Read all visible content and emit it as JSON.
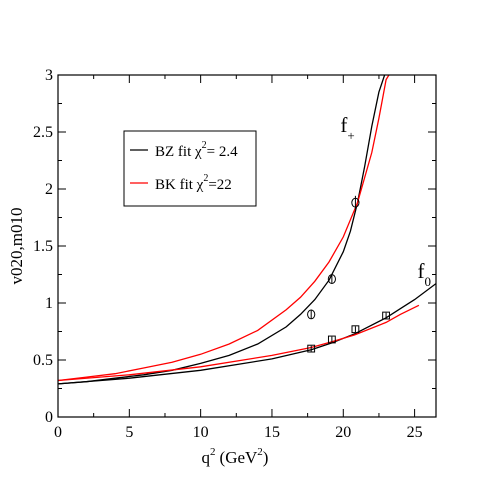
{
  "chart_data": {
    "type": "line",
    "title": "",
    "xlabel": "q",
    "xlabel_sup": "2",
    "xlabel_unit": "(GeV",
    "xlabel_unit_sup": "2",
    "xlabel_close": ")",
    "ylabel": "v020,m010",
    "xlim": [
      0,
      26.5
    ],
    "ylim": [
      0,
      3
    ],
    "x_ticks": [
      0,
      5,
      10,
      15,
      20,
      25
    ],
    "y_ticks": [
      0,
      0.5,
      1,
      1.5,
      2,
      2.5,
      3
    ],
    "x_tick_labels": [
      "0",
      "5",
      "10",
      "15",
      "20",
      "25"
    ],
    "y_tick_labels": [
      "0",
      "0.5",
      "1",
      "1.5",
      "2",
      "2.5",
      "3"
    ],
    "grid": false,
    "legend_position": "upper-left",
    "legend": [
      {
        "label": "BZ fit χ",
        "sup": "2",
        "suffix": "= 2.4",
        "color": "#000000"
      },
      {
        "label": "BK fit χ",
        "sup": "2",
        "suffix": "=22",
        "color": "#ff0000"
      }
    ],
    "annotations": [
      {
        "text": "f",
        "sub": "+",
        "x": 19.8,
        "y": 2.5
      },
      {
        "text": "f",
        "sub": "0",
        "x": 25.2,
        "y": 1.22
      }
    ],
    "series": [
      {
        "name": "BZ fit f+",
        "color": "#000000",
        "x": [
          0,
          2,
          4,
          6,
          8,
          10,
          12,
          14,
          16,
          17,
          18,
          19,
          20,
          20.5,
          21,
          21.5,
          22,
          22.5,
          22.9
        ],
        "y": [
          0.29,
          0.31,
          0.34,
          0.37,
          0.41,
          0.47,
          0.54,
          0.64,
          0.79,
          0.9,
          1.03,
          1.2,
          1.45,
          1.63,
          1.88,
          2.2,
          2.55,
          2.85,
          3.0
        ]
      },
      {
        "name": "BK fit f+",
        "color": "#ff0000",
        "x": [
          0,
          2,
          4,
          6,
          8,
          10,
          12,
          14,
          16,
          17,
          18,
          19,
          20,
          21,
          22,
          22.5,
          23,
          23.2
        ],
        "y": [
          0.32,
          0.35,
          0.38,
          0.43,
          0.48,
          0.55,
          0.64,
          0.76,
          0.94,
          1.05,
          1.19,
          1.36,
          1.58,
          1.88,
          2.32,
          2.62,
          2.96,
          3.0
        ]
      },
      {
        "name": "BZ fit f0",
        "color": "#000000",
        "x": [
          0,
          5,
          10,
          15,
          17.75,
          19.2,
          20.8,
          23.0,
          24,
          25,
          26.5
        ],
        "y": [
          0.29,
          0.34,
          0.41,
          0.51,
          0.59,
          0.65,
          0.73,
          0.87,
          0.95,
          1.03,
          1.17
        ]
      },
      {
        "name": "BK fit f0",
        "color": "#ff0000",
        "x": [
          0,
          5,
          10,
          15,
          17.75,
          19.2,
          20.8,
          23.0,
          24,
          25.3
        ],
        "y": [
          0.32,
          0.37,
          0.44,
          0.54,
          0.61,
          0.66,
          0.72,
          0.83,
          0.9,
          0.98
        ]
      }
    ],
    "points_fplus": [
      {
        "x": 17.75,
        "y": 0.9,
        "err": 0.04
      },
      {
        "x": 19.2,
        "y": 1.21,
        "err": 0.04
      },
      {
        "x": 20.85,
        "y": 1.88,
        "err": 0.06
      }
    ],
    "points_f0": [
      {
        "x": 17.75,
        "y": 0.6,
        "err": 0.025
      },
      {
        "x": 19.2,
        "y": 0.68,
        "err": 0.025
      },
      {
        "x": 20.85,
        "y": 0.77,
        "err": 0.025
      },
      {
        "x": 23.0,
        "y": 0.89,
        "err": 0.025
      }
    ]
  }
}
